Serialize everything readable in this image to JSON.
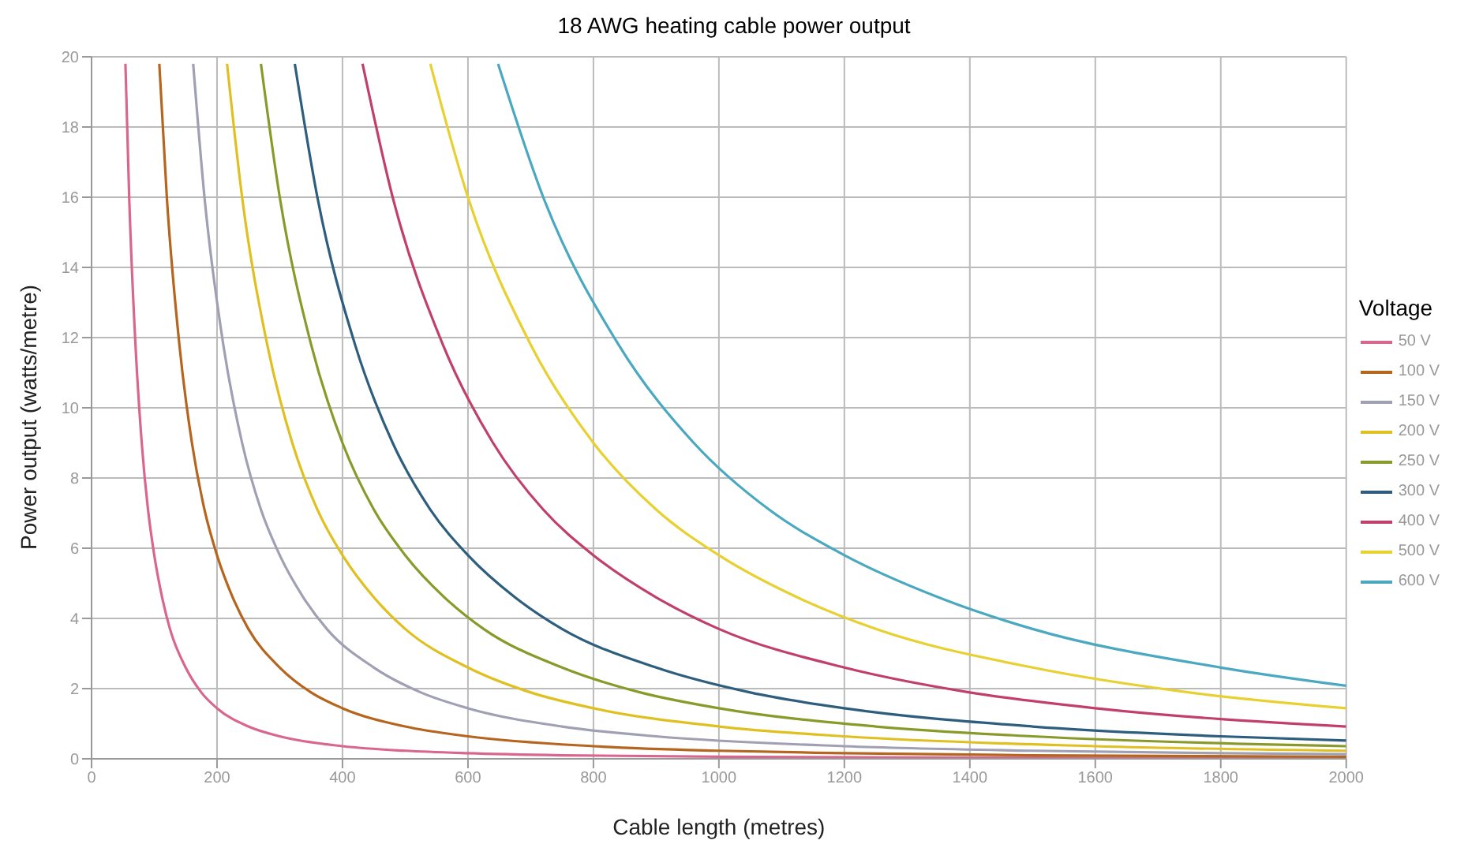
{
  "chart_data": {
    "type": "line",
    "title": "18 AWG heating cable power output",
    "xlabel": "Cable length (metres)",
    "ylabel": "Power output (watts/metre)",
    "legend_title": "Voltage",
    "legend": "right",
    "grid": true,
    "marker": "none",
    "line_style": "solid",
    "xlim": [
      0,
      2000
    ],
    "xticks": [
      0,
      200,
      400,
      600,
      800,
      1000,
      1200,
      1400,
      1600,
      1800,
      2000
    ],
    "ylim": [
      0,
      20
    ],
    "yticks": [
      0,
      2,
      4,
      6,
      8,
      10,
      12,
      14,
      16,
      18,
      20
    ],
    "series": [
      {
        "name": "50 V",
        "color": "#d9668f",
        "x": [
          54,
          60,
          70,
          80,
          90,
          100,
          112.5,
          125,
          150,
          175,
          200,
          250,
          300,
          400,
          500,
          600,
          750,
          1000,
          1500,
          2000
        ],
        "values": [
          19.8,
          16.0,
          11.8,
          9.0,
          7.1,
          5.8,
          4.6,
          3.7,
          2.6,
          1.89,
          1.44,
          0.92,
          0.64,
          0.36,
          0.23,
          0.16,
          0.1,
          0.06,
          0.03,
          0.01
        ]
      },
      {
        "name": "100 V",
        "color": "#b5651d",
        "x": [
          108,
          120,
          140,
          160,
          180,
          200,
          225,
          250,
          300,
          350,
          400,
          500,
          600,
          800,
          1000,
          1200,
          1500,
          2000
        ],
        "values": [
          19.8,
          16.0,
          11.8,
          9.0,
          7.1,
          5.8,
          4.6,
          3.7,
          2.6,
          1.89,
          1.44,
          0.92,
          0.64,
          0.36,
          0.23,
          0.16,
          0.1,
          0.06
        ]
      },
      {
        "name": "150 V",
        "color": "#a0a0b4",
        "x": [
          162,
          180,
          210,
          240,
          270,
          300,
          337.5,
          375,
          450,
          525,
          600,
          750,
          900,
          1200,
          1500,
          1800,
          2000
        ],
        "values": [
          19.8,
          16.0,
          11.8,
          9.0,
          7.1,
          5.8,
          4.6,
          3.7,
          2.6,
          1.89,
          1.44,
          0.92,
          0.64,
          0.36,
          0.23,
          0.16,
          0.13
        ]
      },
      {
        "name": "200 V",
        "color": "#e0c020",
        "x": [
          216,
          240,
          280,
          320,
          360,
          400,
          450,
          500,
          600,
          700,
          800,
          1000,
          1200,
          1600,
          2000
        ],
        "values": [
          19.8,
          16.0,
          11.8,
          9.0,
          7.1,
          5.8,
          4.6,
          3.7,
          2.6,
          1.89,
          1.44,
          0.92,
          0.64,
          0.36,
          0.23
        ]
      },
      {
        "name": "250 V",
        "color": "#8a9a2a",
        "x": [
          270,
          300,
          350,
          400,
          450,
          500,
          562.5,
          625,
          750,
          875,
          1000,
          1250,
          1500,
          2000
        ],
        "values": [
          19.8,
          16.0,
          11.8,
          9.0,
          7.1,
          5.8,
          4.6,
          3.7,
          2.6,
          1.89,
          1.44,
          0.92,
          0.64,
          0.36
        ]
      },
      {
        "name": "300 V",
        "color": "#2e5e7e",
        "x": [
          324,
          360,
          420,
          480,
          540,
          600,
          675,
          750,
          900,
          1050,
          1200,
          1500,
          1800,
          2000
        ],
        "values": [
          19.8,
          16.0,
          11.8,
          9.0,
          7.1,
          5.8,
          4.6,
          3.7,
          2.6,
          1.89,
          1.44,
          0.92,
          0.64,
          0.52
        ]
      },
      {
        "name": "400 V",
        "color": "#c0406a",
        "x": [
          432,
          480,
          560,
          640,
          720,
          800,
          900,
          1000,
          1200,
          1400,
          1600,
          2000
        ],
        "values": [
          19.8,
          16.0,
          11.8,
          9.0,
          7.1,
          5.8,
          4.6,
          3.7,
          2.6,
          1.89,
          1.44,
          0.92
        ]
      },
      {
        "name": "500 V",
        "color": "#e8d030",
        "x": [
          540,
          600,
          700,
          800,
          900,
          1000,
          1125,
          1250,
          1500,
          1750,
          2000
        ],
        "values": [
          19.8,
          16.0,
          11.8,
          9.0,
          7.1,
          5.8,
          4.6,
          3.7,
          2.6,
          1.89,
          1.44
        ]
      },
      {
        "name": "600 V",
        "color": "#4aa8c0",
        "x": [
          648,
          720,
          840,
          960,
          1080,
          1200,
          1350,
          1500,
          1800,
          2000
        ],
        "values": [
          19.8,
          16.0,
          11.8,
          9.0,
          7.1,
          5.8,
          4.6,
          3.7,
          2.6,
          2.08
        ]
      }
    ]
  }
}
